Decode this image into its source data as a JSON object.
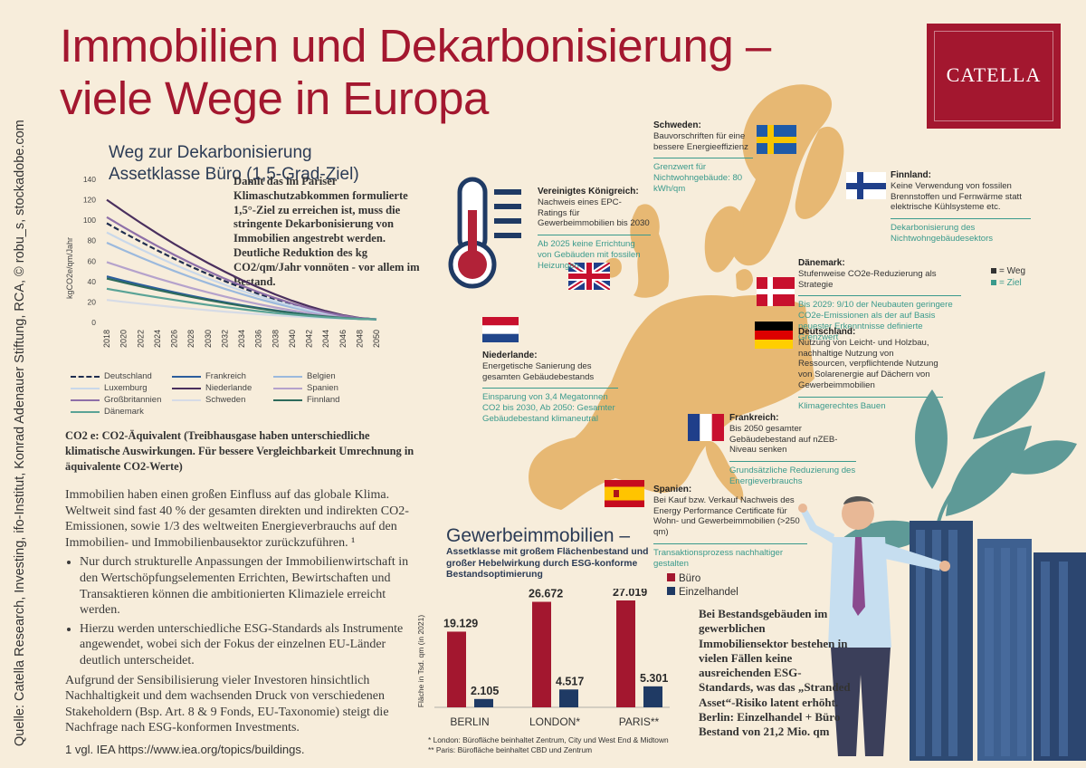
{
  "header": {
    "title_line1": "Immobilien und Dekarbonisierung –",
    "title_line2": "viele Wege in Europa",
    "logo": "CATELLA"
  },
  "source": "Quelle: Catella Research, Investing, ifo-Institut, Konrad Adenauer Stiftung, RCA, © robu_s, stockadobe.com",
  "line_chart": {
    "chart_data": {
      "type": "line",
      "title": "Weg zur Dekarbonisierung Assetklasse Büro (1,5-Grad-Ziel)",
      "ylabel": "kgCO2e/qm/Jahr",
      "ylim": [
        0,
        140
      ],
      "yticks": [
        "0",
        "20",
        "40",
        "60",
        "80",
        "100",
        "120",
        "140"
      ],
      "x": [
        "2018",
        "2020",
        "2022",
        "2024",
        "2026",
        "2028",
        "2030",
        "2032",
        "2034",
        "2036",
        "2038",
        "2040",
        "2042",
        "2044",
        "2046",
        "2048",
        "2050"
      ],
      "series": [
        {
          "name": "Deutschland",
          "color": "#1f2d4f",
          "dashed": true,
          "start": 97
        },
        {
          "name": "Frankreich",
          "color": "#2c5d9c",
          "dashed": false,
          "start": 45
        },
        {
          "name": "Belgien",
          "color": "#9bb9dd",
          "dashed": false,
          "start": 78
        },
        {
          "name": "Luxemburg",
          "color": "#c9d8ea",
          "dashed": false,
          "start": 88
        },
        {
          "name": "Niederlande",
          "color": "#4a2f5e",
          "dashed": false,
          "start": 120
        },
        {
          "name": "Spanien",
          "color": "#b5a2cc",
          "dashed": false,
          "start": 59
        },
        {
          "name": "Großbritannien",
          "color": "#8e6fa8",
          "dashed": false,
          "start": 103
        },
        {
          "name": "Schweden",
          "color": "#d6dbe6",
          "dashed": false,
          "start": 22
        },
        {
          "name": "Finnland",
          "color": "#2d6a5b",
          "dashed": false,
          "start": 43
        },
        {
          "name": "Dänemark",
          "color": "#5aa396",
          "dashed": false,
          "start": 33
        }
      ],
      "end_value": 3
    },
    "text": "Damit das im Pariser Klimaschutzabkommen formulierte 1,5°-Ziel zu erreichen ist, muss die stringente Dekarbonisierung von Immobilien angestrebt werden. Deutliche Reduktion des kg CO2/qm/Jahr vonnöten - vor allem im Bestand."
  },
  "co2_note": "CO2 e: CO2-Äquivalent (Treibhausgase haben unterschiedliche klimatische Auswirkungen. Für bessere Vergleichbarkeit Umrechnung in äquivalente CO2-Werte)",
  "body": {
    "p1": "Immobilien haben einen großen Einfluss auf das globale Klima. Weltweit sind fast 40 % der gesamten direkten und indirekten CO2-Emissionen, sowie 1/3 des weltweiten Energieverbrauchs auf den Immobilien- und Immobilienbausektor zurückzuführen. ¹",
    "b1": "Nur durch strukturelle Anpassungen der Immobilienwirtschaft in den Wertschöpfungselementen Errichten, Bewirtschaften und Transaktieren können die ambitionierten Klimaziele erreicht werden.",
    "b2": "Hierzu werden unterschiedliche ESG-Standards als Instrumente angewendet, wobei sich der Fokus der einzelnen EU-Länder deutlich unterscheidet.",
    "p2": "Aufgrund der Sensibilisierung vieler Investoren hinsichtlich Nachhaltigkeit und dem wachsenden Druck von verschiedenen Stakeholdern (Bsp. Art. 8 & 9 Fonds, EU-Taxonomie) steigt die Nachfrage nach ESG-konformen Investments.",
    "footnote": "1 vgl. IEA https://www.iea.org/topics/buildings."
  },
  "map_legend": {
    "weg": "= Weg",
    "ziel": "= Ziel"
  },
  "countries": [
    {
      "key": "se",
      "name": "Schweden:",
      "weg": "Bauvorschriften für eine bessere Energieeffizienz",
      "ziel": "Grenzwert für Nichtwohngebäude: 80 kWh/qm"
    },
    {
      "key": "fi",
      "name": "Finnland:",
      "weg": "Keine Verwendung von fossilen Brennstoffen und Fernwärme statt elektrische Kühlsysteme etc.",
      "ziel": "Dekarbonisierung des Nichtwohngebäudesektors"
    },
    {
      "key": "uk",
      "name": "Vereinigtes Königreich:",
      "weg": "Nachweis eines EPC-Ratings für Gewerbeimmobilien bis 2030",
      "ziel": "Ab 2025 keine Errichtung von Gebäuden mit fossilen Heizungen"
    },
    {
      "key": "dk",
      "name": "Dänemark:",
      "weg": "Stufenweise CO2e-Reduzierung als Strategie",
      "ziel": "Bis 2029: 9/10 der Neubauten geringere CO2e-Emissionen als der auf Basis neuester Erkenntnisse definierte Grenzwert"
    },
    {
      "key": "nl",
      "name": "Niederlande:",
      "weg": "Energetische Sanierung des gesamten Gebäudebestands",
      "ziel": "Einsparung von 3,4 Megatonnen CO2 bis 2030, Ab 2050: Gesamter Gebäudebestand klimaneutral"
    },
    {
      "key": "de",
      "name": "Deutschland:",
      "weg": "Nutzung von Leicht- und Holzbau, nachhaltige Nutzung von Ressourcen, verpflichtende Nutzung von Solarenergie auf Dächern von Gewerbeimmobilien",
      "ziel": "Klimagerechtes Bauen"
    },
    {
      "key": "fr",
      "name": "Frankreich:",
      "weg": "Bis 2050 gesamter Gebäudebestand auf nZEB-Niveau senken",
      "ziel": "Grundsätzliche Reduzierung des Energieverbrauchs"
    },
    {
      "key": "es",
      "name": "Spanien:",
      "weg": "Bei Kauf bzw. Verkauf Nachweis des Energy Performance Certificate für Wohn- und Gewerbeimmobilien (>250 qm)",
      "ziel": "Transaktionsprozess nachhaltiger gestalten"
    }
  ],
  "gewerbe": {
    "title": "Gewerbeimmobilien –",
    "subtitle": "Assetklasse mit großem Flächenbestand und großer Hebelwirkung durch ESG-konforme Bestandsoptimierung",
    "chart_data": {
      "type": "bar",
      "ylabel": "Fläche in Tsd. qm (in 2021)",
      "categories": [
        "BERLIN",
        "LONDON*",
        "PARIS**"
      ],
      "series": [
        {
          "name": "Büro",
          "color": "#a3172f",
          "values": [
            19129,
            26672,
            27019
          ],
          "labels": [
            "19.129",
            "26.672",
            "27.019"
          ]
        },
        {
          "name": "Einzelhandel",
          "color": "#1f3a64",
          "values": [
            2105,
            4517,
            5301
          ],
          "labels": [
            "2.105",
            "4.517",
            "5.301"
          ]
        }
      ]
    },
    "footnote1": "*  London: Bürofläche beinhaltet Zentrum, City und West End & Midtown",
    "footnote2": "** Paris: Bürofläche beinhaltet CBD und Zentrum"
  },
  "stranded": "Bei Bestandsgebäuden im gewerblichen Immobiliensektor bestehen in vielen Fällen keine ausreichenden ESG-Standards, was das „Stranded Asset“-Risiko latent erhöht. Berlin: Einzelhandel + Büro Bestand von 21,2 Mio. qm"
}
